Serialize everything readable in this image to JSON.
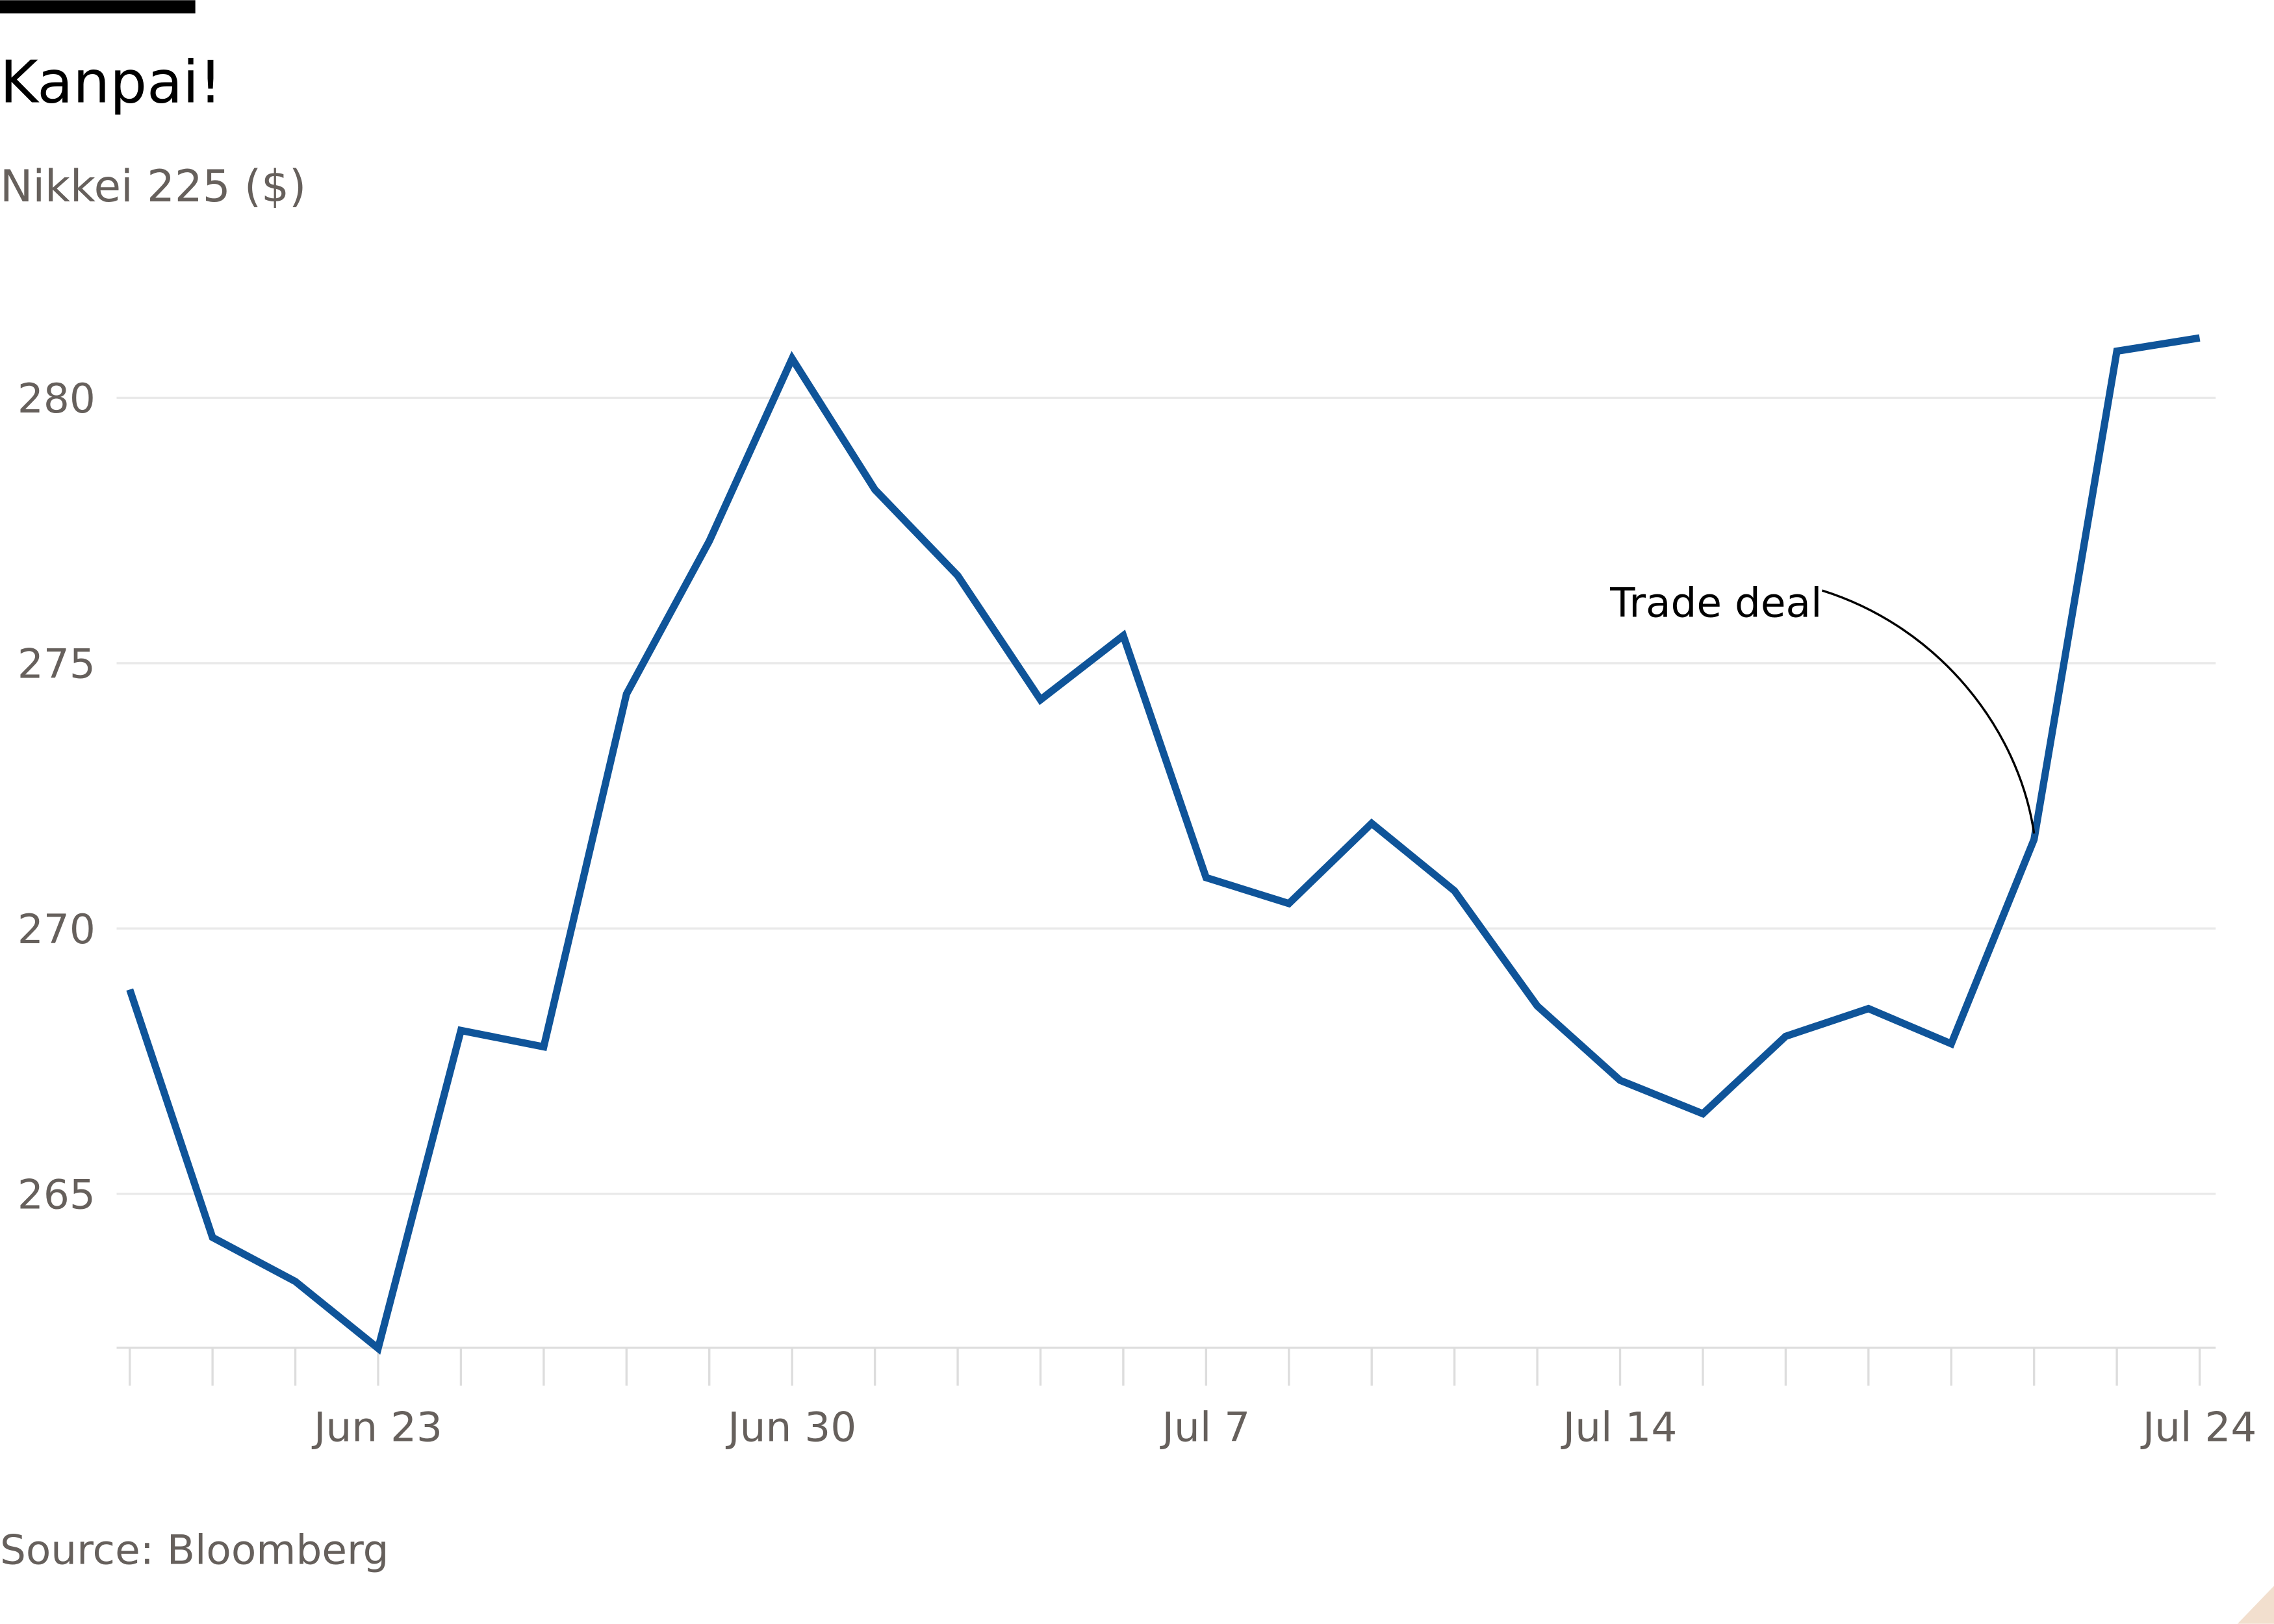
{
  "chart_data": {
    "type": "line",
    "title": "Kanpai!",
    "subtitle": "Nikkei 225 ($)",
    "source": "Source: Bloomberg",
    "annotation": "Trade deal",
    "categories": [
      null,
      null,
      null,
      "Jun 23",
      null,
      null,
      null,
      null,
      "Jun 30",
      null,
      null,
      null,
      null,
      "Jul 7",
      null,
      null,
      null,
      null,
      "Jul 14",
      null,
      null,
      null,
      null,
      null,
      null,
      "Jul 24"
    ],
    "series": [
      {
        "name": "Nikkei 225 ($)",
        "color": "#0f5499",
        "values": [
          268.85,
          264.18,
          263.35,
          262.09,
          268.08,
          267.77,
          274.42,
          277.3,
          280.74,
          278.27,
          276.65,
          274.31,
          275.52,
          270.96,
          270.47,
          271.98,
          270.71,
          268.54,
          267.14,
          266.51,
          267.97,
          268.49,
          267.83,
          271.68,
          280.88,
          281.13
        ]
      }
    ],
    "ylim": [
      262.1,
      282
    ],
    "yticks": [
      265,
      270,
      275,
      280
    ],
    "grid": true
  }
}
